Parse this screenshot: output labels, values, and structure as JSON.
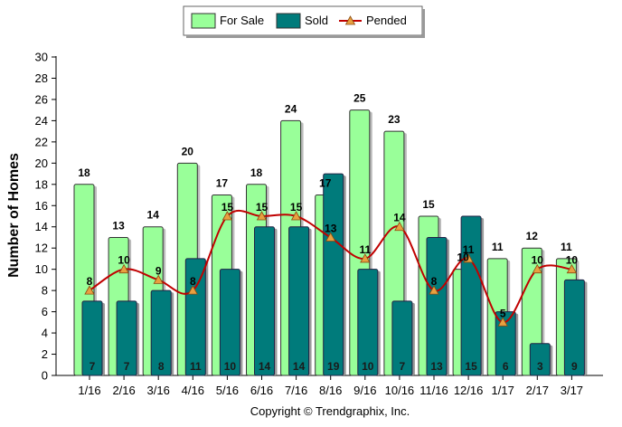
{
  "chart_data": {
    "type": "bar",
    "categories": [
      "1/16",
      "2/16",
      "3/16",
      "4/16",
      "5/16",
      "6/16",
      "7/16",
      "8/16",
      "9/16",
      "10/16",
      "11/16",
      "12/16",
      "1/17",
      "2/17",
      "3/17"
    ],
    "series": [
      {
        "name": "For Sale",
        "kind": "bar",
        "color": "#99ff99",
        "values": [
          18,
          13,
          14,
          20,
          17,
          18,
          24,
          17,
          25,
          23,
          15,
          10,
          11,
          12,
          11
        ]
      },
      {
        "name": "Sold",
        "kind": "bar",
        "color": "#007b7b",
        "values": [
          7,
          7,
          8,
          11,
          10,
          14,
          14,
          19,
          10,
          7,
          13,
          15,
          6,
          3,
          9
        ]
      },
      {
        "name": "Pended",
        "kind": "line",
        "color": "#c00000",
        "marker_color": "#e8a040",
        "values": [
          8,
          10,
          9,
          8,
          15,
          15,
          15,
          13,
          11,
          14,
          8,
          11,
          5,
          10,
          10
        ]
      }
    ],
    "ylabel": "Number of Homes",
    "ylim": [
      0,
      30
    ],
    "yticks": [
      0,
      2,
      4,
      6,
      8,
      10,
      12,
      14,
      16,
      18,
      20,
      22,
      24,
      26,
      28,
      30
    ],
    "grid": false,
    "legend_position": "top-center",
    "copyright": "Copyright © Trendgraphix, Inc."
  }
}
